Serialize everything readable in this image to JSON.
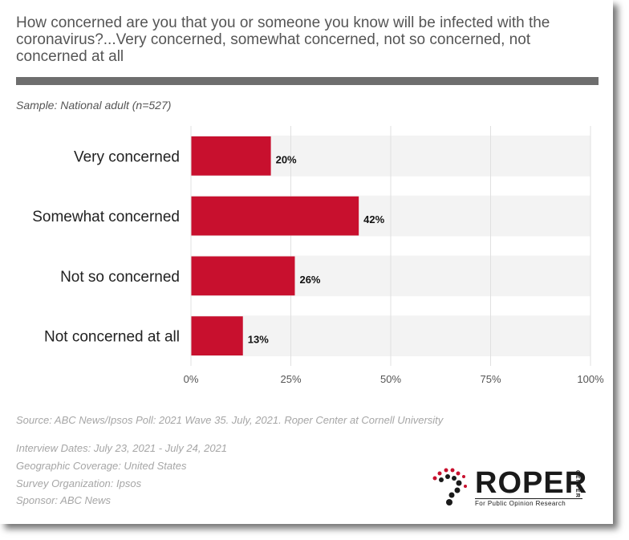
{
  "title": "How concerned are you that you or someone you know will be infected with the coronavirus?...Very concerned, somewhat concerned, not so concerned, not concerned at all",
  "sample": "Sample: National adult (n=527)",
  "colors": {
    "bar": "#c8102e",
    "band": "#f3f3f3",
    "grid": "#e0e0e0",
    "accent_bar": "#6e6e6e"
  },
  "chart_data": {
    "type": "bar",
    "orientation": "horizontal",
    "categories": [
      "Very concerned",
      "Somewhat concerned",
      "Not so concerned",
      "Not concerned at all"
    ],
    "values": [
      20,
      42,
      26,
      13
    ],
    "value_labels": [
      "20%",
      "42%",
      "26%",
      "13%"
    ],
    "xlim": [
      0,
      100
    ],
    "x_ticks": [
      "0%",
      "25%",
      "50%",
      "75%",
      "100%"
    ],
    "grid": true
  },
  "source": {
    "citation": "Source: ABC News/Ipsos Poll: 2021 Wave 35. July, 2021. Roper Center at Cornell University",
    "interview_dates": "Interview Dates: July 23, 2021 - July 24, 2021",
    "coverage": "Geographic Coverage: United States",
    "organization": "Survey Organization: Ipsos",
    "sponsor": "Sponsor: ABC News"
  },
  "logo": {
    "name": "ROPER",
    "vertical": "CENTER",
    "tagline": "For Public Opinion Research"
  }
}
